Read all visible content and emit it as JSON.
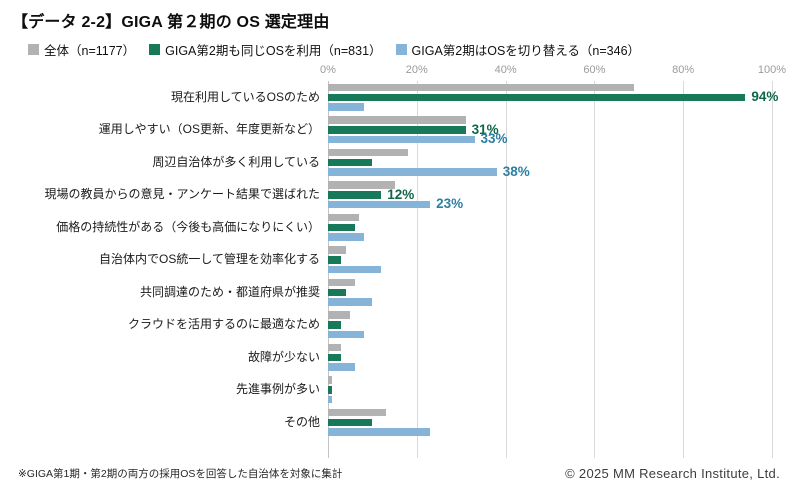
{
  "header": {
    "title": "【データ 2-2】GIGA 第２期の OS 選定理由"
  },
  "legend": [
    {
      "label": "全体（n=1177）",
      "color": "#b2b2b2"
    },
    {
      "label": "GIGA第2期も同じOSを利用（n=831）",
      "color": "#17795a"
    },
    {
      "label": "GIGA第2期はOSを切り替える（n=346）",
      "color": "#85b4d8"
    }
  ],
  "chart_data": {
    "type": "bar",
    "orientation": "horizontal",
    "title": "【データ 2-2】GIGA 第２期の OS 選定理由",
    "xlim": [
      0,
      100
    ],
    "xticks": [
      "0%",
      "20%",
      "40%",
      "60%",
      "80%",
      "100%"
    ],
    "grid": true,
    "legend_position": "top",
    "categories": [
      "現在利用しているOSのため",
      "運用しやすい（OS更新、年度更新など）",
      "周辺自治体が多く利用している",
      "現場の教員からの意見・アンケート結果で選ばれた",
      "価格の持続性がある（今後も高価になりにくい）",
      "自治体内でOS統一して管理を効率化する",
      "共同調達のため・都道府県が推奨",
      "クラウドを活用するのに最適なため",
      "故障が少ない",
      "先進事例が多い",
      "その他"
    ],
    "series": [
      {
        "name": "全体（n=1177）",
        "color": "#b2b2b2",
        "label_color": "#6f6f6f",
        "values": [
          69,
          31,
          18,
          15,
          7,
          4,
          6,
          5,
          3,
          1,
          13
        ]
      },
      {
        "name": "GIGA第2期も同じOSを利用（n=831）",
        "color": "#17795a",
        "label_color": "#0d6647",
        "values": [
          94,
          31,
          10,
          12,
          6,
          3,
          4,
          3,
          3,
          1,
          10
        ]
      },
      {
        "name": "GIGA第2期はOSを切り替える（n=346）",
        "color": "#85b4d8",
        "label_color": "#2c7fa2",
        "values": [
          8,
          33,
          38,
          23,
          8,
          12,
          10,
          8,
          6,
          1,
          23
        ]
      }
    ],
    "value_labels": [
      {
        "category": 0,
        "series": 1,
        "text": "94%"
      },
      {
        "category": 1,
        "series": 1,
        "text": "31%"
      },
      {
        "category": 1,
        "series": 2,
        "text": "33%"
      },
      {
        "category": 2,
        "series": 2,
        "text": "38%"
      },
      {
        "category": 3,
        "series": 1,
        "text": "12%"
      },
      {
        "category": 3,
        "series": 2,
        "text": "23%"
      }
    ]
  },
  "footer": {
    "note": "※GIGA第1期・第2期の両方の採用OSを回答した自治体を対象に集計",
    "copyright": "© 2025 MM Research Institute, Ltd."
  }
}
